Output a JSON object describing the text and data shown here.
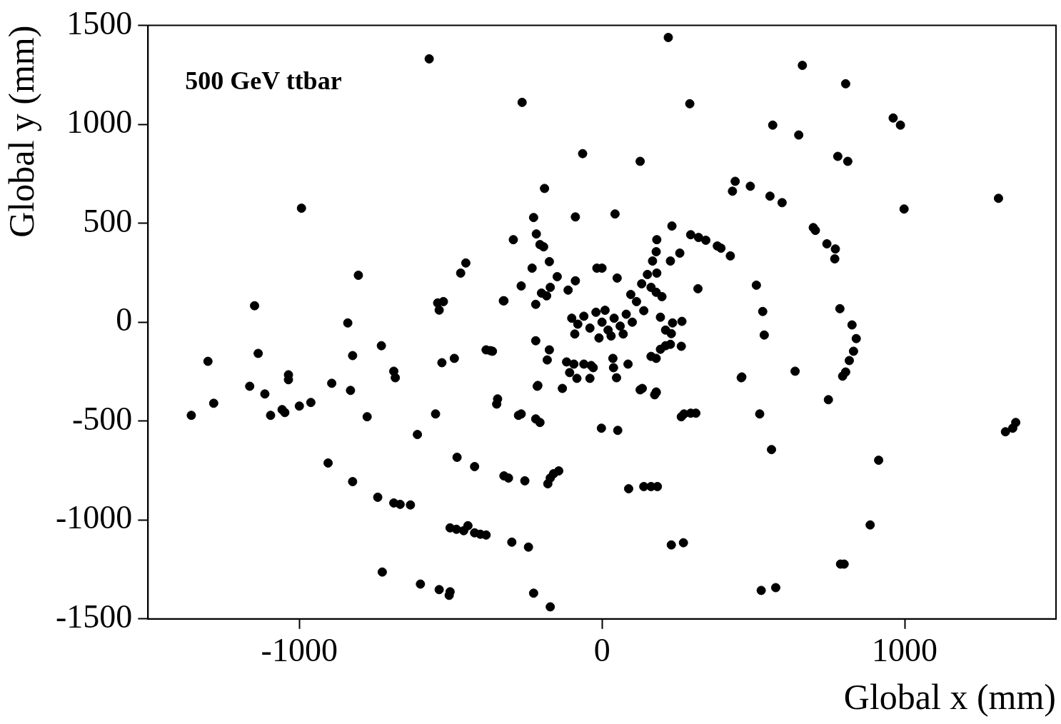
{
  "chart_data": {
    "type": "scatter",
    "xlabel": "Global x (mm)",
    "ylabel": "Global y (mm)",
    "annotations": [
      "500 GeV ttbar"
    ],
    "xlim": [
      -1500,
      1500
    ],
    "ylim": [
      -1500,
      1500
    ],
    "xticks": [
      -1000,
      0,
      1000
    ],
    "yticks": [
      -1500,
      -1000,
      -500,
      0,
      500,
      1000,
      1500
    ],
    "grid": false,
    "legend": false,
    "marker": "circle",
    "series": [
      {
        "color": "#000000",
        "x": [
          219,
          -571,
          662,
          805,
          -264,
          290,
          962,
          986,
          564,
          650,
          -64,
          126,
          779,
          812,
          440,
          431,
          490,
          555,
          595,
          -190,
          998,
          1310,
          -993,
          43,
          -88,
          -226,
          231,
          -293,
          -217,
          -205,
          -193,
          698,
          705,
          743,
          771,
          769,
          -450,
          -467,
          -174,
          293,
          319,
          343,
          381,
          393,
          424,
          181,
          -231,
          179,
          167,
          226,
          257,
          0,
          -17,
          50,
          -148,
          -88,
          -267,
          -112,
          -171,
          -200,
          -183,
          -219,
          -324,
          181,
          150,
          131,
          162,
          179,
          198,
          95,
          114,
          317,
          138,
          193,
          264,
          233,
          210,
          229,
          -100,
          -80,
          -60,
          -40,
          -20,
          0,
          10,
          20,
          40,
          60,
          80,
          100,
          -90,
          30,
          -10,
          70,
          -219,
          -362,
          -174,
          -181,
          -117,
          -93,
          -60,
          -36,
          -107,
          -83,
          -40,
          -29,
          36,
          38,
          48,
          86,
          162,
          179,
          210,
          226,
          193,
          262,
          -212,
          -131,
          133,
          179,
          460,
          -1148,
          -1302,
          -1136,
          -1164,
          -1114,
          -1283,
          -1357,
          -1095,
          -1057,
          -1048,
          -1036,
          -1036,
          -1000,
          -962,
          -840,
          -805,
          -824,
          -893,
          -831,
          -729,
          -776,
          -688,
          -683,
          -905,
          -824,
          -741,
          -726,
          -688,
          -667,
          -633,
          -610,
          -550,
          -600,
          -538,
          -502,
          -505,
          -543,
          -538,
          -524,
          -529,
          -488,
          -479,
          -502,
          -481,
          -457,
          -443,
          -421,
          -421,
          -402,
          -383,
          -383,
          -369,
          -345,
          -348,
          -326,
          -324,
          -309,
          -298,
          -276,
          -267,
          -255,
          -243,
          -226,
          -219,
          -205,
          -214,
          -179,
          -171,
          -160,
          -143,
          -171,
          -2,
          52,
          88,
          138,
          162,
          183,
          229,
          269,
          262,
          271,
          293,
          310,
          126,
          174,
          179,
          462,
          510,
          531,
          536,
          560,
          526,
          574,
          748,
          786,
          826,
          840,
          831,
          817,
          805,
          795,
          886,
          788,
          800,
          914,
          521,
          638,
          1333,
          1357,
          1367
        ],
        "values": [
          1439,
          1331,
          1298,
          1205,
          1111,
          1104,
          1032,
          996,
          996,
          946,
          852,
          813,
          838,
          813,
          712,
          662,
          687,
          637,
          604,
          676,
          572,
          626,
          576,
          547,
          532,
          529,
          486,
          417,
          446,
          392,
          381,
          478,
          464,
          396,
          370,
          320,
          299,
          248,
          306,
          442,
          428,
          414,
          385,
          374,
          335,
          417,
          273,
          356,
          309,
          309,
          349,
          273,
          273,
          223,
          230,
          209,
          183,
          162,
          176,
          147,
          133,
          90,
          108,
          248,
          241,
          194,
          176,
          151,
          129,
          140,
          104,
          169,
          58,
          25,
          4,
          -4,
          -40,
          -58,
          20,
          -10,
          30,
          -30,
          50,
          0,
          60,
          -40,
          20,
          -20,
          40,
          0,
          -60,
          -70,
          -80,
          -60,
          -94,
          -147,
          -140,
          -191,
          -201,
          -212,
          -212,
          -219,
          -255,
          -284,
          -284,
          -230,
          -183,
          -230,
          -281,
          -212,
          -173,
          -183,
          -119,
          -112,
          -137,
          -122,
          -320,
          -335,
          -335,
          -353,
          -281,
          83,
          -198,
          -158,
          -324,
          -363,
          -410,
          -471,
          -471,
          -442,
          -457,
          -266,
          -291,
          -424,
          -406,
          -4,
          237,
          -169,
          -309,
          -345,
          -119,
          -478,
          -248,
          -281,
          -712,
          -806,
          -885,
          -1263,
          -914,
          -921,
          -924,
          -568,
          -464,
          -1324,
          -1352,
          -1363,
          -1381,
          97,
          61,
          104,
          -205,
          -183,
          -683,
          -1040,
          -1047,
          -1054,
          -1029,
          -730,
          -1065,
          -1072,
          -1076,
          -140,
          -144,
          -388,
          -414,
          108,
          -777,
          -788,
          -1112,
          -471,
          -464,
          -802,
          -1137,
          -1370,
          -489,
          -507,
          -324,
          -817,
          -788,
          -766,
          -752,
          -1439,
          -536,
          -547,
          -842,
          -831,
          -831,
          -831,
          -1126,
          -1115,
          -478,
          -464,
          -460,
          -460,
          -342,
          -367,
          -356,
          -277,
          187,
          54,
          -65,
          -644,
          -1356,
          -1342,
          -392,
          68,
          -14,
          -83,
          -147,
          -194,
          -252,
          -273,
          -1025,
          -1223,
          -1223,
          -698,
          -464,
          -248,
          -554,
          -536,
          -507
        ]
      }
    ]
  }
}
